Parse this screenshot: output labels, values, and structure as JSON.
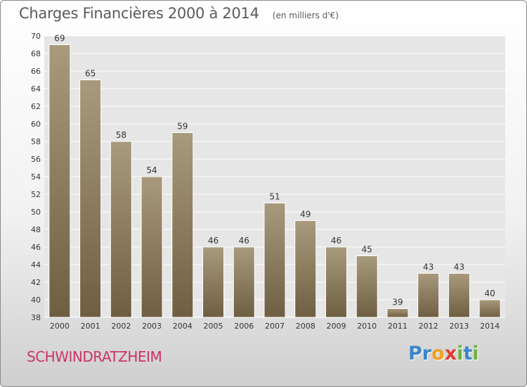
{
  "chart_data": {
    "type": "bar",
    "title": "Charges Financières 2000 à 2014",
    "subtitle": "(en milliers d'€)",
    "categories": [
      "2000",
      "2001",
      "2002",
      "2003",
      "2004",
      "2005",
      "2006",
      "2007",
      "2008",
      "2009",
      "2010",
      "2011",
      "2012",
      "2013",
      "2014"
    ],
    "values": [
      69,
      65,
      58,
      54,
      59,
      46,
      46,
      51,
      49,
      46,
      45,
      39,
      43,
      43,
      40
    ],
    "ylim": [
      38,
      70
    ],
    "yticks": [
      38,
      40,
      42,
      44,
      46,
      48,
      50,
      52,
      54,
      56,
      58,
      60,
      62,
      64,
      66,
      68,
      70
    ],
    "grid": true,
    "legend": "none",
    "bar_color_top": "#a89a7c",
    "bar_color_bottom": "#6f5f42"
  },
  "commune": "SCHWINDRATZHEIM",
  "brand": {
    "letters": [
      "P",
      "r",
      "o",
      "x",
      "i",
      "t",
      "i"
    ],
    "colors": [
      "#3a86c8",
      "#3a86c8",
      "#f0a020",
      "#e23b2e",
      "#6cb33f",
      "#3a86c8",
      "#6cb33f"
    ]
  }
}
